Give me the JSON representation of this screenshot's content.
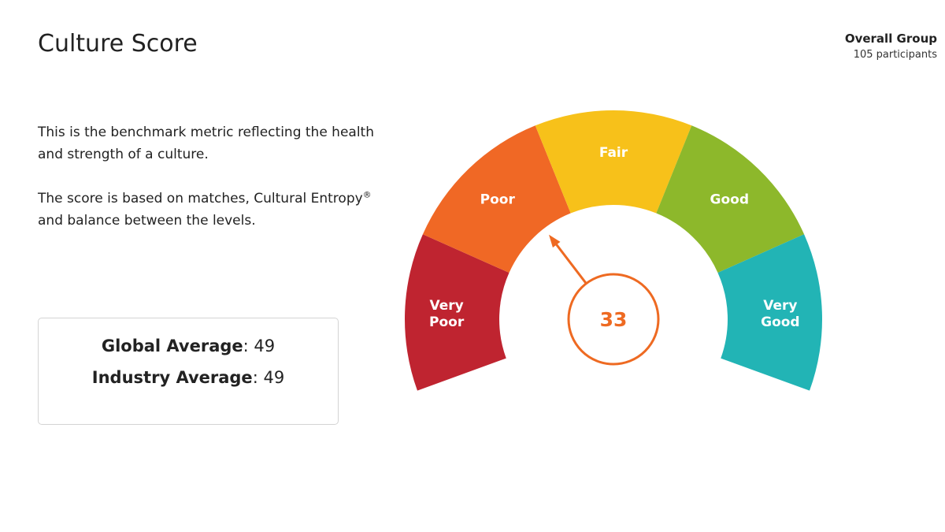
{
  "header": {
    "title": "Culture Score",
    "group_name": "Overall Group",
    "participants": "105 participants"
  },
  "description": {
    "line1": "This is the benchmark metric reflecting the health and strength of a culture.",
    "line2_pre": "The score is based on matches, Cultural Entropy",
    "line2_sup": "®",
    "line2_post": " and balance between the levels."
  },
  "averages": {
    "global_label": "Global Average",
    "global_value": "49",
    "industry_label": "Industry Average",
    "industry_value": "49"
  },
  "chart_data": {
    "type": "gauge",
    "score": 33,
    "score_label": "33",
    "accent_color": "#ee6a22",
    "segments": [
      {
        "label": [
          "Very",
          "Poor"
        ],
        "color": "#bf2430"
      },
      {
        "label": [
          "Poor"
        ],
        "color": "#f06825"
      },
      {
        "label": [
          "Fair"
        ],
        "color": "#f7c11a"
      },
      {
        "label": [
          "Good"
        ],
        "color": "#8db82b"
      },
      {
        "label": [
          "Very",
          "Good"
        ],
        "color": "#22b4b5"
      }
    ]
  }
}
